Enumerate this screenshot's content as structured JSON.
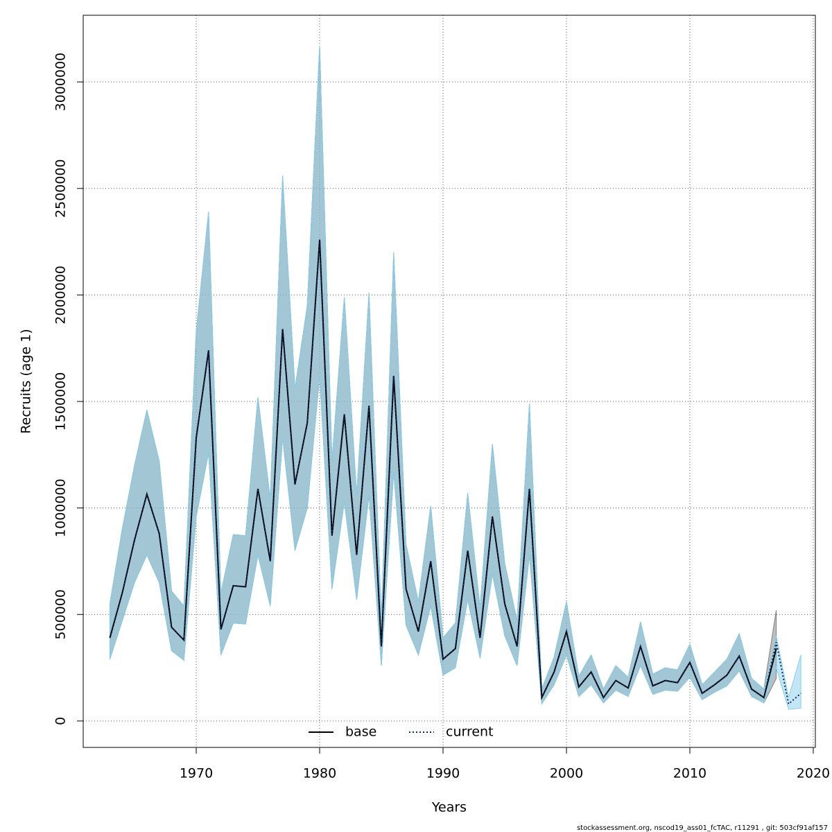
{
  "chart_data": {
    "type": "line",
    "xlabel": "Years",
    "ylabel": "Recruits (age 1)",
    "footnote": "stockassessment.org, nscod19_ass01_fcTAC, r11291 , git: 503cf91af157",
    "x": [
      1963,
      1964,
      1965,
      1966,
      1967,
      1968,
      1969,
      1970,
      1971,
      1972,
      1973,
      1974,
      1975,
      1976,
      1977,
      1978,
      1979,
      1980,
      1981,
      1982,
      1983,
      1984,
      1985,
      1986,
      1987,
      1988,
      1989,
      1990,
      1991,
      1992,
      1993,
      1994,
      1995,
      1996,
      1997,
      1998,
      1999,
      2000,
      2001,
      2002,
      2003,
      2004,
      2005,
      2006,
      2007,
      2008,
      2009,
      2010,
      2011,
      2012,
      2013,
      2014,
      2015,
      2016,
      2017,
      2018,
      2019
    ],
    "series": [
      {
        "name": "base",
        "color": "#000000",
        "dash": "solid",
        "band_color": "#808080",
        "values": [
          390000,
          600000,
          850000,
          1065000,
          880000,
          440000,
          380000,
          1330000,
          1740000,
          430000,
          635000,
          630000,
          1090000,
          750000,
          1840000,
          1110000,
          1400000,
          2260000,
          870000,
          1440000,
          780000,
          1480000,
          350000,
          1620000,
          620000,
          420000,
          750000,
          290000,
          340000,
          800000,
          390000,
          960000,
          550000,
          350000,
          1090000,
          110000,
          230000,
          420000,
          160000,
          230000,
          110000,
          190000,
          155000,
          350000,
          165000,
          190000,
          180000,
          275000,
          130000,
          170000,
          215000,
          305000,
          150000,
          110000,
          340000,
          null,
          null
        ],
        "lower": [
          290000,
          470000,
          650000,
          780000,
          650000,
          330000,
          285000,
          960000,
          1260000,
          310000,
          460000,
          455000,
          780000,
          540000,
          1330000,
          800000,
          1000000,
          1620000,
          620000,
          1030000,
          570000,
          1060000,
          260000,
          1170000,
          450000,
          310000,
          540000,
          215000,
          250000,
          570000,
          295000,
          690000,
          400000,
          260000,
          780000,
          80000,
          170000,
          310000,
          115000,
          170000,
          85000,
          145000,
          115000,
          260000,
          125000,
          145000,
          140000,
          205000,
          100000,
          135000,
          165000,
          235000,
          115000,
          85000,
          200000,
          null,
          null
        ],
        "upper": [
          550000,
          900000,
          1200000,
          1460000,
          1220000,
          610000,
          540000,
          1830000,
          2390000,
          600000,
          875000,
          870000,
          1520000,
          1040000,
          2560000,
          1560000,
          1950000,
          3170000,
          1220000,
          1990000,
          1060000,
          2010000,
          480000,
          2200000,
          830000,
          560000,
          1010000,
          390000,
          460000,
          1070000,
          530000,
          1300000,
          740000,
          470000,
          1490000,
          150000,
          300000,
          560000,
          210000,
          310000,
          150000,
          260000,
          205000,
          465000,
          220000,
          250000,
          240000,
          360000,
          170000,
          230000,
          290000,
          410000,
          200000,
          150000,
          520000,
          null,
          null
        ]
      },
      {
        "name": "current",
        "color": "#0a2a5e",
        "dash": "dotted",
        "band_color": "#87ceeb",
        "values": [
          390000,
          600000,
          850000,
          1065000,
          880000,
          440000,
          380000,
          1330000,
          1740000,
          430000,
          635000,
          630000,
          1090000,
          750000,
          1840000,
          1110000,
          1400000,
          2260000,
          870000,
          1440000,
          780000,
          1480000,
          350000,
          1620000,
          620000,
          420000,
          750000,
          290000,
          340000,
          800000,
          390000,
          960000,
          550000,
          350000,
          1090000,
          110000,
          230000,
          420000,
          160000,
          230000,
          110000,
          190000,
          155000,
          350000,
          165000,
          190000,
          180000,
          275000,
          130000,
          170000,
          215000,
          305000,
          150000,
          110000,
          370000,
          80000,
          130000
        ],
        "lower": [
          290000,
          470000,
          650000,
          780000,
          650000,
          330000,
          285000,
          960000,
          1260000,
          310000,
          460000,
          455000,
          780000,
          540000,
          1330000,
          800000,
          1000000,
          1620000,
          620000,
          1030000,
          570000,
          1060000,
          260000,
          1170000,
          450000,
          310000,
          540000,
          215000,
          250000,
          570000,
          295000,
          690000,
          400000,
          260000,
          780000,
          80000,
          170000,
          310000,
          115000,
          170000,
          85000,
          145000,
          115000,
          260000,
          125000,
          145000,
          140000,
          205000,
          100000,
          135000,
          165000,
          235000,
          115000,
          85000,
          250000,
          55000,
          60000
        ],
        "upper": [
          550000,
          900000,
          1200000,
          1460000,
          1220000,
          610000,
          540000,
          1830000,
          2390000,
          600000,
          875000,
          870000,
          1520000,
          1040000,
          2560000,
          1560000,
          1950000,
          3170000,
          1220000,
          1990000,
          1060000,
          2010000,
          480000,
          2200000,
          830000,
          560000,
          1010000,
          390000,
          460000,
          1070000,
          530000,
          1300000,
          740000,
          470000,
          1490000,
          150000,
          300000,
          560000,
          210000,
          310000,
          150000,
          260000,
          205000,
          465000,
          220000,
          250000,
          240000,
          360000,
          170000,
          230000,
          290000,
          410000,
          200000,
          150000,
          400000,
          110000,
          310000
        ]
      }
    ],
    "xlim": [
      1960.84,
      2020.17
    ],
    "xticks": [
      1970,
      1980,
      1990,
      2000,
      2010,
      2020
    ],
    "ylim": [
      -124000,
      3313000
    ],
    "yticks": [
      0,
      500000,
      1000000,
      1500000,
      2000000,
      2500000,
      3000000
    ],
    "grid": true,
    "legend": "bottom"
  }
}
